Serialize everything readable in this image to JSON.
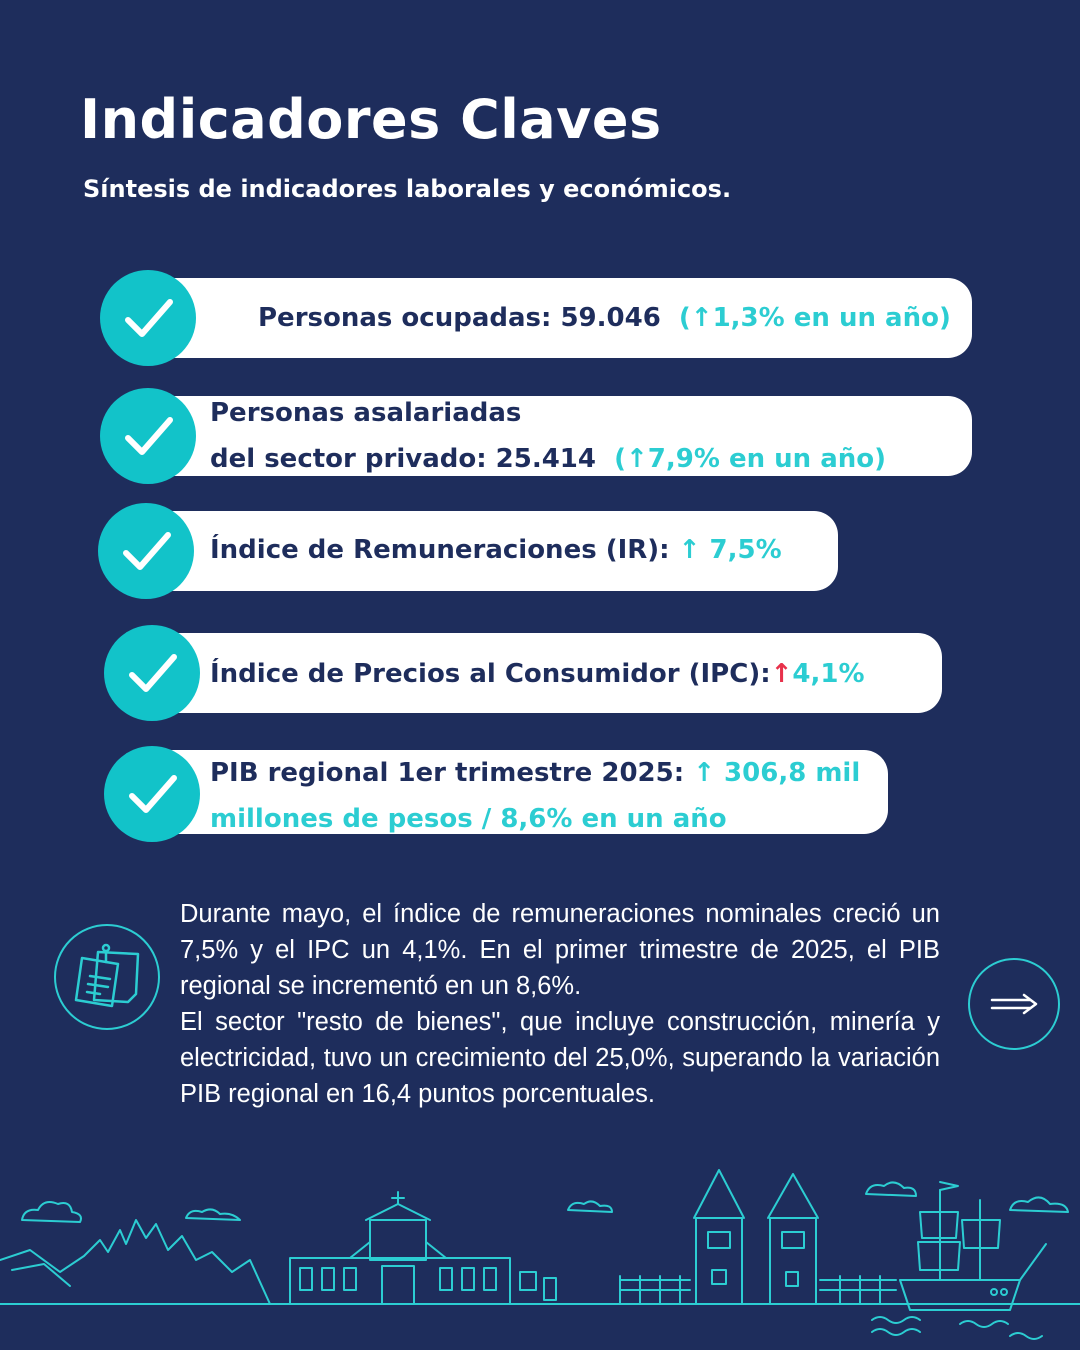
{
  "header": {
    "title": "Indicadores Claves",
    "subtitle": "Síntesis de indicadores laborales y económicos."
  },
  "indicators": [
    {
      "label": "Personas ocupadas: 59.046",
      "open": "(",
      "arrow": "↑",
      "change": "1,3% en un año)"
    },
    {
      "label_line1": "Personas asalariadas",
      "label_line2": "del sector privado: 25.414",
      "open": "(",
      "arrow": "↑",
      "change": "7,9% en un año)"
    },
    {
      "label": "Índice de Remuneraciones (IR):",
      "arrow": "↑",
      "change": "7,5%"
    },
    {
      "label": "Índice de Precios al Consumidor (IPC):",
      "arrow": "↑",
      "change": "4,1%"
    },
    {
      "label": "PIB regional 1er trimestre 2025:",
      "arrow": "↑",
      "change_line1": "306,8 mil",
      "change_line2": "millones de pesos / 8,6% en un año"
    }
  ],
  "summary": {
    "paragraph1": "Durante mayo, el índice de remuneraciones nominales creció un 7,5% y el IPC un 4,1%. En el primer trimestre de 2025, el PIB regional se incrementó en un 8,6%.",
    "paragraph2": "El sector \"resto de bienes\", que incluye construcción, minería y electricidad, tuvo un crecimiento del 25,0%, superando la variación PIB regional en 16,4 puntos porcentuales."
  },
  "icons": {
    "check": "check-icon",
    "note": "sticky-note-icon",
    "next": "arrow-right-icon",
    "skyline": "city-skyline-illustration"
  },
  "colors": {
    "background": "#1e2d5c",
    "accent": "#2ccdd2",
    "up_red": "#e8314b",
    "card": "#ffffff"
  }
}
